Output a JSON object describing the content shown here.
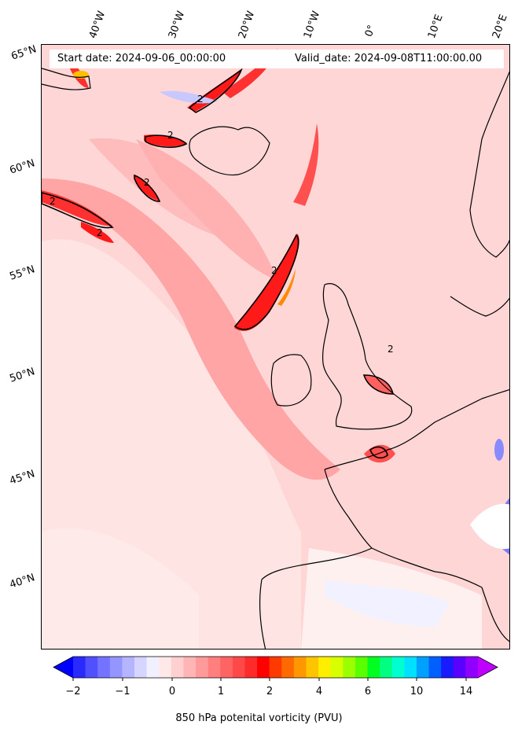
{
  "header": {
    "start_label": "Start date: 2024-09-06_00:00:00",
    "valid_label": "Valid_date: 2024-09-08T11:00:00.00"
  },
  "longitude_labels": [
    "40°W",
    "30°W",
    "20°W",
    "10°W",
    "0°",
    "10°E",
    "20°E"
  ],
  "latitude_labels": [
    "65°N",
    "60°N",
    "55°N",
    "50°N",
    "45°N",
    "40°N"
  ],
  "contour_labels": [
    "2",
    "2",
    "2",
    "2",
    "2",
    "2",
    "2"
  ],
  "colorbar": {
    "label": "850 hPa potenital vorticity (PVU)",
    "ticks": [
      "−2",
      "−1",
      "0",
      "1",
      "2",
      "4",
      "6",
      "10",
      "14"
    ],
    "colors": [
      "#0000ff",
      "#2a2aff",
      "#5050ff",
      "#7373ff",
      "#9595ff",
      "#b5b5ff",
      "#d5d5ff",
      "#f0f0ff",
      "#ffe8e8",
      "#ffd0d0",
      "#ffb5b5",
      "#ff9a9a",
      "#ff7f7f",
      "#ff6464",
      "#ff4848",
      "#ff2a2a",
      "#ff0000",
      "#ff3a00",
      "#ff6a00",
      "#ff9800",
      "#ffc400",
      "#ffee00",
      "#d7ff00",
      "#9cff00",
      "#5aff00",
      "#00ff20",
      "#00ff80",
      "#00ffd0",
      "#00e0ff",
      "#00a0ff",
      "#0060ff",
      "#1a1aff",
      "#5a00ff",
      "#9000ff",
      "#c000ff"
    ]
  },
  "colors": {
    "background_field": "#ffe3e3",
    "strong_pv": "#ff2020",
    "coastline": "#000000"
  }
}
